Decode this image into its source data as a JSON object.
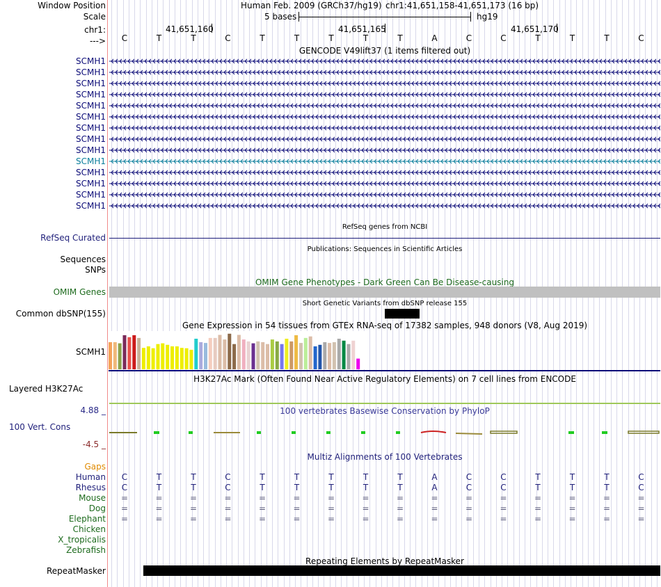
{
  "header": {
    "window_position_label": "Window Position",
    "assembly": "Human Feb. 2009 (GRCh37/hg19)",
    "position": "chr1:41,651,158-41,651,173 (16 bp)",
    "scale_label": "Scale",
    "scale_text": "5 bases",
    "scale_db": "hg19",
    "chrom_label": "chr1:",
    "strand_label": "--->",
    "coords": [
      "41,651,160",
      "41,651,165",
      "41,651,170"
    ]
  },
  "sequence": [
    "C",
    "T",
    "T",
    "C",
    "T",
    "T",
    "T",
    "T",
    "T",
    "A",
    "C",
    "C",
    "T",
    "T",
    "T",
    "C"
  ],
  "gencode": {
    "title": "GENCODE V49lift37 (1 items filtered out)",
    "gene_labels": [
      "SCMH1",
      "SCMH1",
      "SCMH1",
      "SCMH1",
      "SCMH1",
      "SCMH1",
      "SCMH1",
      "SCMH1",
      "SCMH1",
      "SCMH1",
      "SCMH1",
      "SCMH1",
      "SCMH1",
      "SCMH1"
    ],
    "highlight_index": 9,
    "colors": {
      "default": "#0c0c78",
      "highlight": "#0c7f9c"
    }
  },
  "refseq": {
    "title": "RefSeq genes from NCBI",
    "label": "RefSeq Curated"
  },
  "publications": {
    "title": "Publications: Sequences in Scientific Articles",
    "label1": "Sequences",
    "label2": "SNPs"
  },
  "omim": {
    "title": "OMIM Gene Phenotypes - Dark Green Can Be Disease-causing",
    "label": "OMIM Genes"
  },
  "dbsnp": {
    "title": "Short Genetic Variants from dbSNP release 155",
    "label": "Common dbSNP(155)"
  },
  "gtex": {
    "title": "Gene Expression in 54 tissues from GTEx RNA-seq of 17382 samples, 948 donors (V8, Aug 2019)",
    "label": "SCMH1",
    "bars": [
      {
        "h": 0.71,
        "c": "#f4a25a"
      },
      {
        "h": 0.71,
        "c": "#f0b87a"
      },
      {
        "h": 0.68,
        "c": "#8ca24c"
      },
      {
        "h": 0.89,
        "c": "#7a2a5a"
      },
      {
        "h": 0.84,
        "c": "#e8504a"
      },
      {
        "h": 0.89,
        "c": "#cc1a1a"
      },
      {
        "h": 0.82,
        "c": "#c9b39a"
      },
      {
        "h": 0.56,
        "c": "#eeee00"
      },
      {
        "h": 0.6,
        "c": "#eeee00"
      },
      {
        "h": 0.55,
        "c": "#eeee00"
      },
      {
        "h": 0.66,
        "c": "#eeee00"
      },
      {
        "h": 0.68,
        "c": "#eeee00"
      },
      {
        "h": 0.64,
        "c": "#eeee00"
      },
      {
        "h": 0.6,
        "c": "#eeee00"
      },
      {
        "h": 0.6,
        "c": "#eeee00"
      },
      {
        "h": 0.56,
        "c": "#eeee00"
      },
      {
        "h": 0.55,
        "c": "#eeee00"
      },
      {
        "h": 0.51,
        "c": "#eeee00"
      },
      {
        "h": 0.8,
        "c": "#22cccc"
      },
      {
        "h": 0.71,
        "c": "#aaaadd"
      },
      {
        "h": 0.69,
        "c": "#99bbdd"
      },
      {
        "h": 0.82,
        "c": "#f5cdbe"
      },
      {
        "h": 0.82,
        "c": "#e7cbc0"
      },
      {
        "h": 0.9,
        "c": "#dcbda8"
      },
      {
        "h": 0.78,
        "c": "#dcbda8"
      },
      {
        "h": 0.93,
        "c": "#8c6a4a"
      },
      {
        "h": 0.66,
        "c": "#8c6a4a"
      },
      {
        "h": 0.9,
        "c": "#dcbda8"
      },
      {
        "h": 0.78,
        "c": "#f0b0c0"
      },
      {
        "h": 0.73,
        "c": "#e9d2d2"
      },
      {
        "h": 0.68,
        "c": "#6a3090"
      },
      {
        "h": 0.73,
        "c": "#d2c2b0"
      },
      {
        "h": 0.71,
        "c": "#dcbda8"
      },
      {
        "h": 0.66,
        "c": "#dcbda8"
      },
      {
        "h": 0.78,
        "c": "#aacc44"
      },
      {
        "h": 0.73,
        "c": "#88aa44"
      },
      {
        "h": 0.66,
        "c": "#7777ee"
      },
      {
        "h": 0.8,
        "c": "#eeee22"
      },
      {
        "h": 0.73,
        "c": "#cc9966"
      },
      {
        "h": 0.89,
        "c": "#eebb44"
      },
      {
        "h": 0.69,
        "c": "#d2c2b0"
      },
      {
        "h": 0.82,
        "c": "#bbee99"
      },
      {
        "h": 0.86,
        "c": "#dcbda8"
      },
      {
        "h": 0.6,
        "c": "#2266cc"
      },
      {
        "h": 0.64,
        "c": "#2255aa"
      },
      {
        "h": 0.71,
        "c": "#aaaaaa"
      },
      {
        "h": 0.69,
        "c": "#dcbda8"
      },
      {
        "h": 0.71,
        "c": "#d2c2b0"
      },
      {
        "h": 0.8,
        "c": "#aaaaaa"
      },
      {
        "h": 0.75,
        "c": "#008844"
      },
      {
        "h": 0.66,
        "c": "#aaaaaa"
      },
      {
        "h": 0.75,
        "c": "#efd2d2"
      },
      {
        "h": 0.28,
        "c": "#ee00ee"
      }
    ]
  },
  "h3k27ac": {
    "title": "H3K27Ac Mark (Often Found Near Active Regulatory Elements) on 7 cell lines from ENCODE",
    "label": "Layered H3K27Ac"
  },
  "conservation": {
    "title": "100 vertebrates Basewise Conservation by PhyloP",
    "label": "100 Vert. Cons",
    "max": "4.88 _",
    "min": "-4.5 _"
  },
  "multiz": {
    "title": "Multiz Alignments of 100 Vertebrates",
    "gaps_label": "Gaps",
    "species": [
      {
        "name": "Human",
        "seq": [
          "C",
          "T",
          "T",
          "C",
          "T",
          "T",
          "T",
          "T",
          "T",
          "A",
          "C",
          "C",
          "T",
          "T",
          "T",
          "C"
        ]
      },
      {
        "name": "Rhesus",
        "seq": [
          "C",
          "T",
          "T",
          "C",
          "T",
          "T",
          "T",
          "T",
          "T",
          "A",
          "C",
          "C",
          "T",
          "T",
          "T",
          "C"
        ]
      },
      {
        "name": "Mouse",
        "seq": [
          "=",
          "=",
          "=",
          "=",
          "=",
          "=",
          "=",
          "=",
          "=",
          "=",
          "=",
          "=",
          "=",
          "=",
          "=",
          "="
        ]
      },
      {
        "name": "Dog",
        "seq": [
          "=",
          "=",
          "=",
          "=",
          "=",
          "=",
          "=",
          "=",
          "=",
          "=",
          "=",
          "=",
          "=",
          "=",
          "=",
          "="
        ]
      },
      {
        "name": "Elephant",
        "seq": [
          "=",
          "=",
          "=",
          "=",
          "=",
          "=",
          "=",
          "=",
          "=",
          "=",
          "=",
          "=",
          "=",
          "=",
          "=",
          "="
        ]
      },
      {
        "name": "Chicken",
        "seq": []
      },
      {
        "name": "X_tropicalis",
        "seq": []
      },
      {
        "name": "Zebrafish",
        "seq": []
      }
    ]
  },
  "repeatmasker": {
    "title": "Repeating Elements by RepeatMasker",
    "label": "RepeatMasker"
  }
}
